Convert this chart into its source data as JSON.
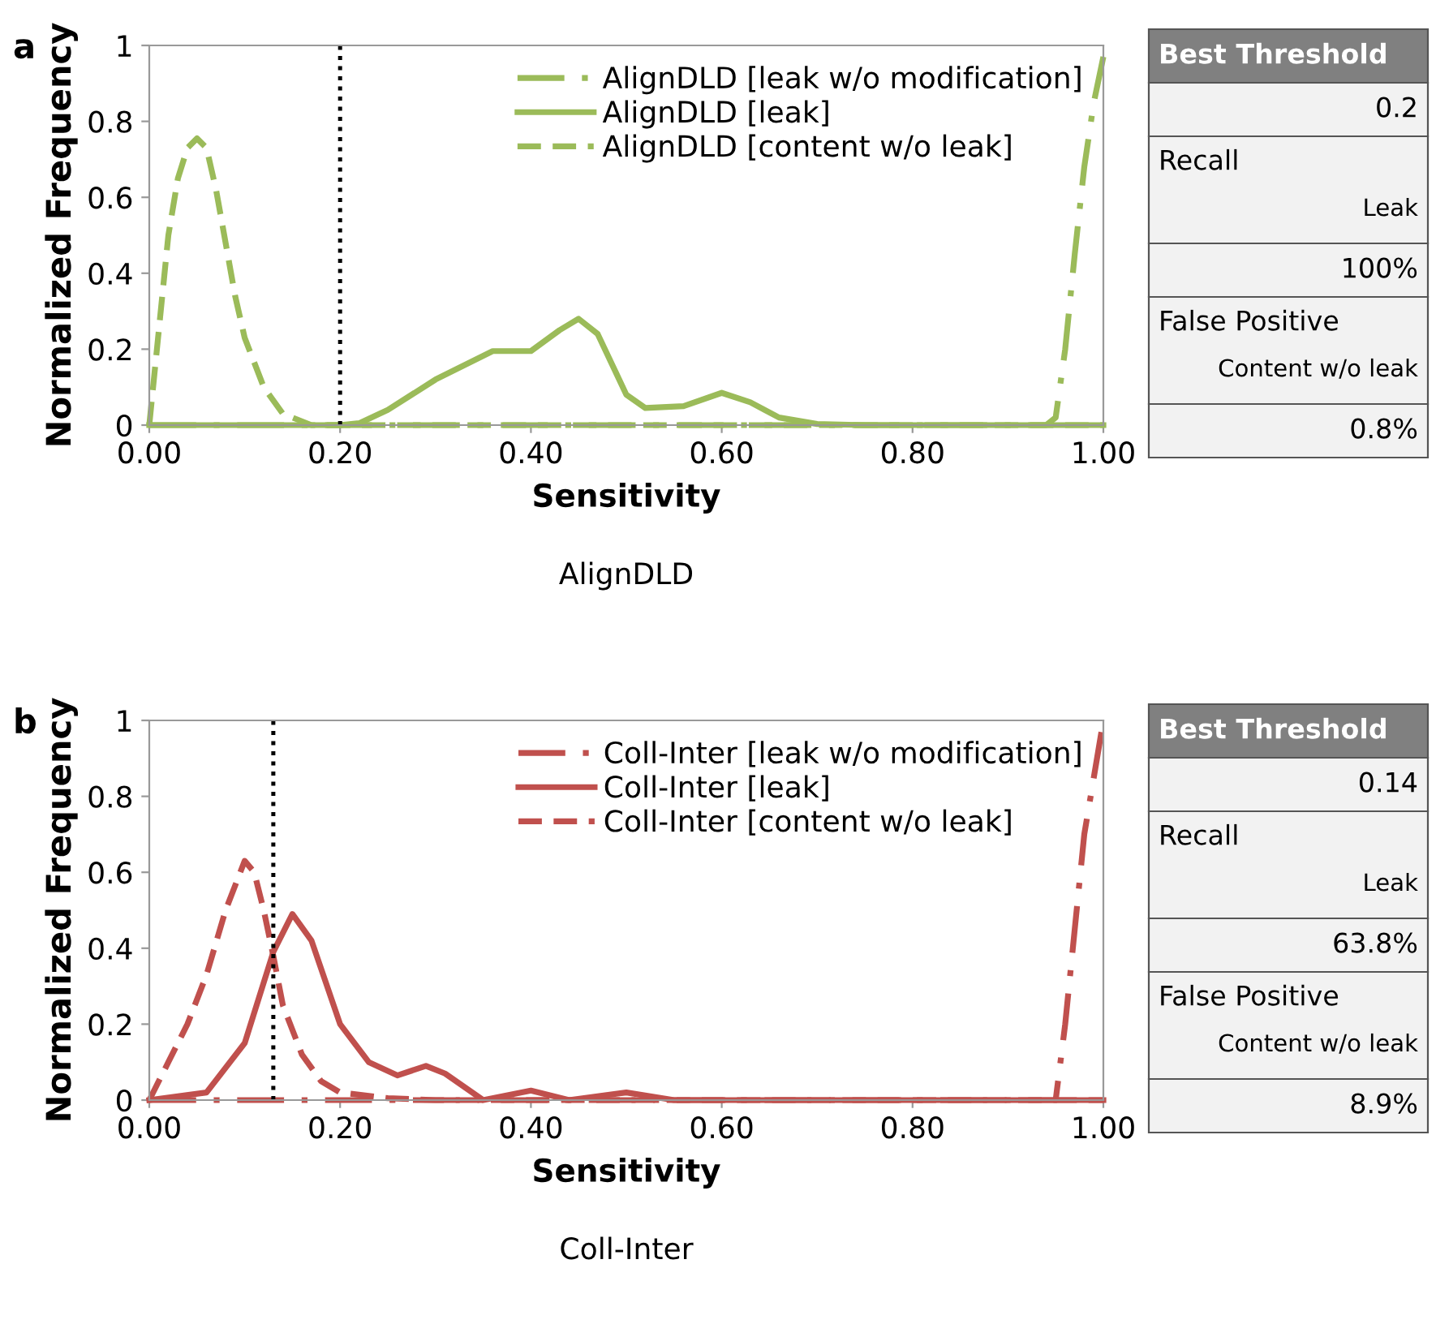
{
  "chart_data": [
    {
      "type": "line",
      "title": "a",
      "xlabel": "Sensitivity",
      "subtitle": "AlignDLD",
      "ylabel": "Normalized Frequency",
      "xlim": [
        0,
        1
      ],
      "ylim": [
        0,
        1
      ],
      "xticks": [
        {
          "value": 0,
          "label": "0.00"
        },
        {
          "value": 0.2,
          "label": "0.20"
        },
        {
          "value": 0.4,
          "label": "0.40"
        },
        {
          "value": 0.6,
          "label": "0.60"
        },
        {
          "value": 0.8,
          "label": "0.80"
        },
        {
          "value": 1,
          "label": "1.00"
        }
      ],
      "yticks": [
        0,
        0.2,
        0.4,
        0.6,
        0.8,
        1
      ],
      "grid": false,
      "legend": "top right",
      "ref_lines": [
        {
          "axis": "x",
          "value": 0.2,
          "color": "#000000",
          "line_style": "dotted"
        }
      ],
      "series": [
        {
          "name": "AlignDLD [leak w/o modification]",
          "color": "#9bbb59",
          "line_style": "dashdot",
          "x": [
            0,
            0.94,
            0.95,
            0.96,
            0.97,
            0.98,
            0.99,
            1.0
          ],
          "values": [
            0,
            0,
            0.02,
            0.2,
            0.45,
            0.68,
            0.85,
            0.97
          ]
        },
        {
          "name": "AlignDLD [leak]",
          "color": "#9bbb59",
          "line_style": "solid",
          "x": [
            0,
            0.2,
            0.22,
            0.25,
            0.3,
            0.36,
            0.4,
            0.43,
            0.45,
            0.47,
            0.5,
            0.52,
            0.56,
            0.6,
            0.63,
            0.66,
            0.7,
            0.75,
            1.0
          ],
          "values": [
            0,
            0,
            0.005,
            0.04,
            0.12,
            0.195,
            0.195,
            0.25,
            0.28,
            0.24,
            0.08,
            0.045,
            0.05,
            0.085,
            0.06,
            0.02,
            0.003,
            0,
            0
          ]
        },
        {
          "name": "AlignDLD [content w/o leak]",
          "color": "#9bbb59",
          "line_style": "dashed",
          "x": [
            0,
            0.01,
            0.02,
            0.03,
            0.04,
            0.05,
            0.06,
            0.07,
            0.08,
            0.09,
            0.1,
            0.12,
            0.14,
            0.17,
            0.2,
            1.0
          ],
          "values": [
            0,
            0.25,
            0.5,
            0.65,
            0.73,
            0.755,
            0.73,
            0.62,
            0.48,
            0.34,
            0.23,
            0.1,
            0.03,
            0,
            0,
            0
          ]
        }
      ]
    },
    {
      "type": "other",
      "title": "Best Threshold",
      "annotations": [
        "0.2",
        "Recall",
        "Leak",
        "100%",
        "False Positive",
        "Content w/o leak",
        "0.8%"
      ]
    },
    {
      "type": "line",
      "title": "b",
      "xlabel": "Sensitivity",
      "subtitle": "Coll-Inter",
      "ylabel": "Normalized Frequency",
      "xlim": [
        0,
        1
      ],
      "ylim": [
        0,
        1
      ],
      "xticks": [
        {
          "value": 0,
          "label": "0.00"
        },
        {
          "value": 0.2,
          "label": "0.20"
        },
        {
          "value": 0.4,
          "label": "0.40"
        },
        {
          "value": 0.6,
          "label": "0.60"
        },
        {
          "value": 0.8,
          "label": "0.80"
        },
        {
          "value": 1,
          "label": "1.00"
        }
      ],
      "yticks": [
        0,
        0.2,
        0.4,
        0.6,
        0.8,
        1
      ],
      "grid": false,
      "legend": "top right",
      "ref_lines": [
        {
          "axis": "x",
          "value": 0.13,
          "color": "#000000",
          "line_style": "dotted"
        }
      ],
      "series": [
        {
          "name": "Coll-Inter [leak w/o modification]",
          "color": "#c0504d",
          "line_style": "dashdot",
          "x": [
            0,
            0.95,
            0.96,
            0.97,
            0.98,
            0.99,
            1.0
          ],
          "values": [
            0,
            0,
            0.2,
            0.45,
            0.7,
            0.85,
            1.0
          ]
        },
        {
          "name": "Coll-Inter [leak]",
          "color": "#c0504d",
          "line_style": "solid",
          "x": [
            0,
            0.06,
            0.1,
            0.13,
            0.15,
            0.17,
            0.2,
            0.23,
            0.26,
            0.29,
            0.31,
            0.35,
            0.4,
            0.44,
            0.5,
            0.55,
            1.0
          ],
          "values": [
            0,
            0.02,
            0.15,
            0.39,
            0.49,
            0.42,
            0.2,
            0.1,
            0.065,
            0.09,
            0.07,
            0,
            0.025,
            0,
            0.02,
            0,
            0
          ]
        },
        {
          "name": "Coll-Inter [content w/o leak]",
          "color": "#c0504d",
          "line_style": "dashed",
          "x": [
            0,
            0.02,
            0.04,
            0.06,
            0.08,
            0.1,
            0.11,
            0.12,
            0.13,
            0.14,
            0.16,
            0.18,
            0.2,
            0.25,
            0.3,
            1.0
          ],
          "values": [
            0,
            0.1,
            0.2,
            0.33,
            0.5,
            0.63,
            0.6,
            0.5,
            0.38,
            0.25,
            0.12,
            0.05,
            0.02,
            0.005,
            0,
            0
          ]
        }
      ]
    },
    {
      "type": "other",
      "title": "Best Threshold",
      "annotations": [
        "0.14",
        "Recall",
        "Leak",
        "63.8%",
        "False Positive",
        "Content w/o leak",
        "8.9%"
      ]
    }
  ]
}
